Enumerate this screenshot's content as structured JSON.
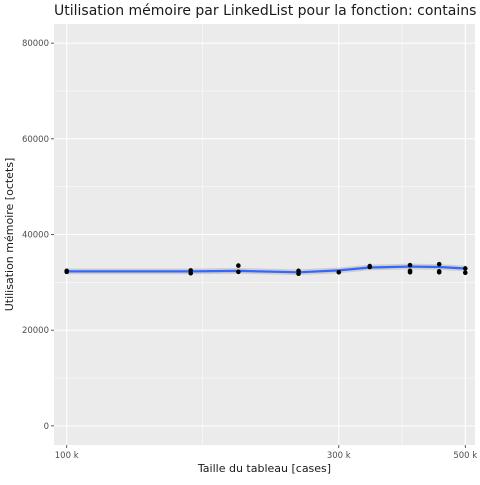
{
  "chart_data": {
    "type": "scatter",
    "title": "Utilisation mémoire par LinkedList pour la fonction: contains",
    "xlabel": "Taille du tableau [cases]",
    "ylabel": "Utilisation mémoire [octets]",
    "x_scale": "log10",
    "xlim": [
      95000,
      520000
    ],
    "ylim": [
      -4000,
      84000
    ],
    "x_ticks": [
      {
        "value": 100000,
        "label": "100 k"
      },
      {
        "value": 300000,
        "label": "300 k"
      },
      {
        "value": 500000,
        "label": "500 k"
      }
    ],
    "x_minor_ticks": [
      173205,
      387298
    ],
    "y_ticks": [
      {
        "value": 0,
        "label": "0"
      },
      {
        "value": 20000,
        "label": "20000"
      },
      {
        "value": 40000,
        "label": "40000"
      },
      {
        "value": 60000,
        "label": "60000"
      },
      {
        "value": 80000,
        "label": "80000"
      }
    ],
    "grid": true,
    "points": [
      {
        "x": 100000,
        "y": 32400
      },
      {
        "x": 100000,
        "y": 32200
      },
      {
        "x": 165000,
        "y": 32500
      },
      {
        "x": 165000,
        "y": 31900
      },
      {
        "x": 200000,
        "y": 33500
      },
      {
        "x": 200000,
        "y": 32200
      },
      {
        "x": 255000,
        "y": 32400
      },
      {
        "x": 255000,
        "y": 31800
      },
      {
        "x": 300000,
        "y": 32100
      },
      {
        "x": 340000,
        "y": 33400
      },
      {
        "x": 340000,
        "y": 33200
      },
      {
        "x": 400000,
        "y": 33600
      },
      {
        "x": 400000,
        "y": 32400
      },
      {
        "x": 400000,
        "y": 32100
      },
      {
        "x": 450000,
        "y": 33800
      },
      {
        "x": 450000,
        "y": 32300
      },
      {
        "x": 450000,
        "y": 32100
      },
      {
        "x": 500000,
        "y": 32900
      },
      {
        "x": 500000,
        "y": 32000
      }
    ],
    "smooth": {
      "color": "#3366ff",
      "band_color": "#999999",
      "x": [
        100000,
        165000,
        200000,
        255000,
        300000,
        340000,
        400000,
        450000,
        500000
      ],
      "y": [
        32300,
        32300,
        32400,
        32100,
        32500,
        33100,
        33300,
        33200,
        32900
      ],
      "band": 600
    }
  }
}
